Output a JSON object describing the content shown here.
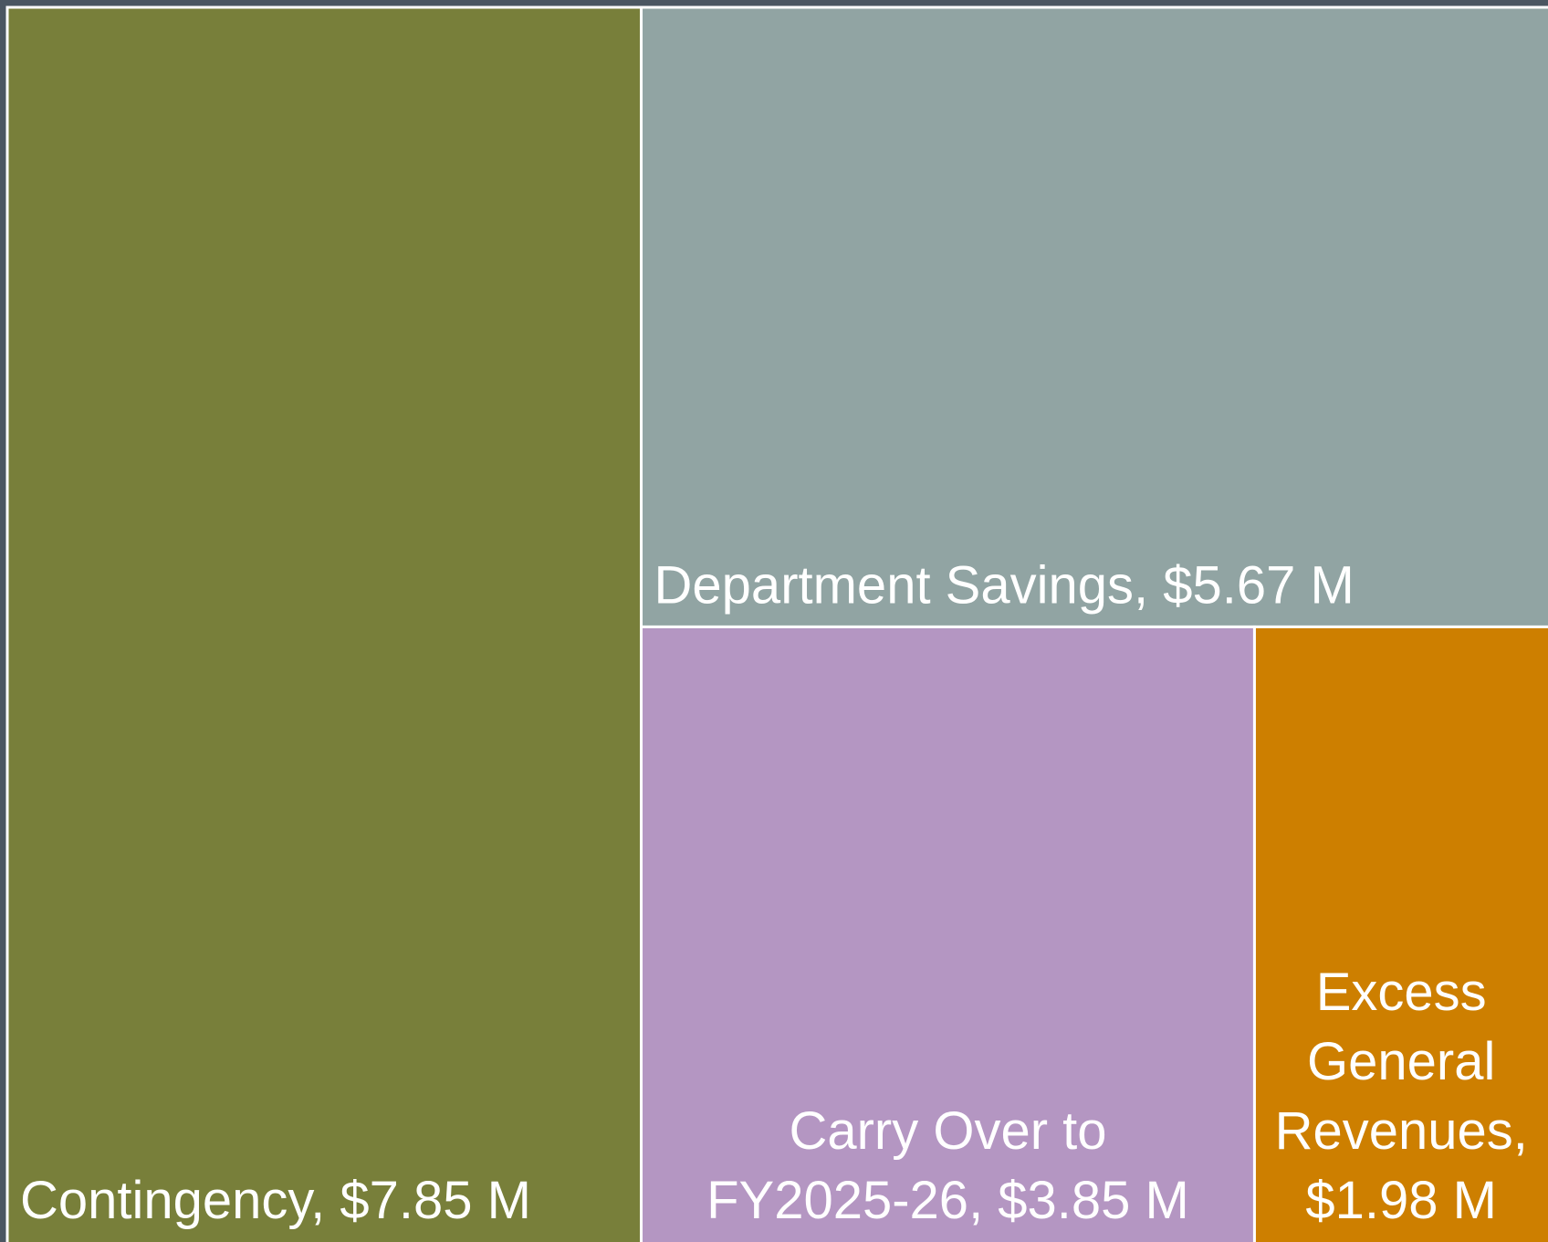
{
  "chart_data": {
    "type": "treemap",
    "labels": [
      "Contingency, $7.85 M",
      "Department Savings, $5.67 M",
      "Carry Over to FY2025-26, $3.85 M",
      "Excess General Revenues, $1.98 M"
    ],
    "values": [
      7.85,
      5.67,
      3.85,
      1.98
    ],
    "colors": [
      "#787f3a",
      "#91a4a3",
      "#b496c2",
      "#cd7f00"
    ]
  }
}
